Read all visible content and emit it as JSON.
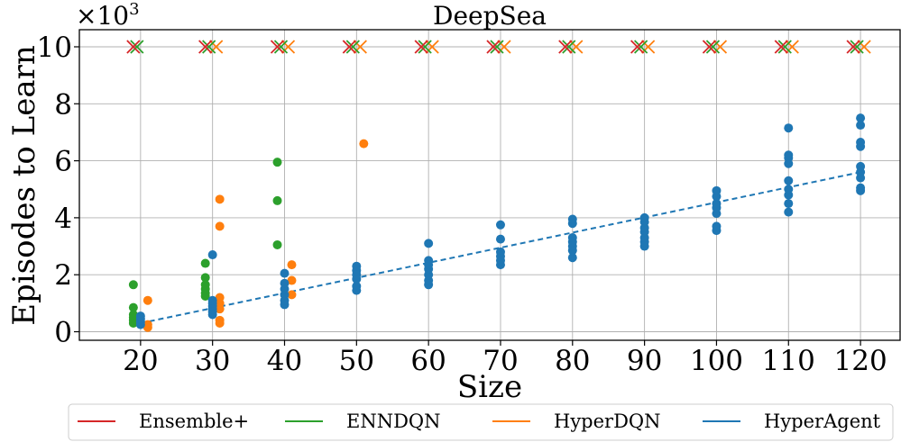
{
  "chart_data": {
    "type": "scatter",
    "title": "DeepSea",
    "xlabel": "Size",
    "ylabel": "Episodes to Learn",
    "y_multiplier_label": "×10",
    "y_multiplier_exponent": "3",
    "x_ticks": [
      "20",
      "30",
      "40",
      "50",
      "60",
      "70",
      "80",
      "90",
      "100",
      "110",
      "120"
    ],
    "y_ticks": [
      "0",
      "2",
      "4",
      "6",
      "8",
      "10"
    ],
    "xlim": [
      11.5,
      125.5
    ],
    "ylim": [
      -0.3,
      10.6
    ],
    "grid": true,
    "legend_position": "bottom",
    "colors": {
      "Ensemble+": "#d62728",
      "ENNDQN": "#2ca02c",
      "HyperDQN": "#ff7f0e",
      "HyperAgent": "#1f77b4"
    },
    "series": [
      {
        "name": "Ensemble+",
        "failed_sizes": [
          20,
          30,
          40,
          50,
          60,
          70,
          80,
          90,
          100,
          110,
          120
        ],
        "failed_value": 10
      },
      {
        "name": "ENNDQN",
        "failed_sizes": [
          20,
          30,
          40,
          50,
          60,
          70,
          80,
          90,
          100,
          110,
          120
        ],
        "failed_value": 10,
        "points": [
          {
            "size": 20,
            "y": [
              0.3,
              0.4,
              0.5,
              0.6,
              0.85,
              1.65
            ]
          },
          {
            "size": 30,
            "y": [
              1.25,
              1.35,
              1.5,
              1.65,
              1.9,
              2.4
            ]
          },
          {
            "size": 40,
            "y": [
              3.05,
              4.6,
              5.95
            ]
          }
        ]
      },
      {
        "name": "HyperDQN",
        "failed_sizes": [
          30,
          40,
          50,
          60,
          70,
          80,
          90,
          100,
          110,
          120
        ],
        "failed_value": 10,
        "points": [
          {
            "size": 20,
            "y": [
              0.15,
              0.25,
              1.1
            ]
          },
          {
            "size": 30,
            "y": [
              0.3,
              0.4,
              0.8,
              1.0,
              1.2,
              3.7,
              4.65
            ]
          },
          {
            "size": 40,
            "y": [
              1.3,
              1.8,
              2.35
            ]
          },
          {
            "size": 50,
            "y": [
              6.6
            ]
          }
        ]
      },
      {
        "name": "HyperAgent",
        "points": [
          {
            "size": 20,
            "y": [
              0.25,
              0.35,
              0.45,
              0.55
            ]
          },
          {
            "size": 30,
            "y": [
              0.6,
              0.7,
              0.8,
              0.9,
              1.0,
              1.1,
              2.7
            ]
          },
          {
            "size": 40,
            "y": [
              0.95,
              1.1,
              1.3,
              1.5,
              1.7,
              2.05
            ]
          },
          {
            "size": 50,
            "y": [
              1.45,
              1.6,
              1.85,
              2.0,
              2.15,
              2.3
            ]
          },
          {
            "size": 60,
            "y": [
              1.65,
              1.8,
              2.0,
              2.2,
              2.35,
              2.5,
              3.1
            ]
          },
          {
            "size": 70,
            "y": [
              2.35,
              2.5,
              2.65,
              2.8,
              3.25,
              3.75
            ]
          },
          {
            "size": 80,
            "y": [
              2.6,
              2.85,
              3.0,
              3.15,
              3.3,
              3.8,
              3.95
            ]
          },
          {
            "size": 90,
            "y": [
              3.0,
              3.15,
              3.3,
              3.5,
              3.65,
              3.85,
              4.0
            ]
          },
          {
            "size": 100,
            "y": [
              3.55,
              3.7,
              4.15,
              4.35,
              4.5,
              4.75,
              4.95
            ]
          },
          {
            "size": 110,
            "y": [
              4.2,
              4.5,
              4.8,
              5.0,
              5.3,
              5.9,
              6.1,
              6.2,
              7.15
            ]
          },
          {
            "size": 120,
            "y": [
              4.95,
              5.05,
              5.4,
              5.6,
              5.8,
              6.5,
              6.65,
              7.25,
              7.5
            ]
          }
        ],
        "trend": {
          "x": [
            20,
            120
          ],
          "y": [
            0.3,
            5.6
          ],
          "style": "dashed"
        }
      }
    ]
  }
}
